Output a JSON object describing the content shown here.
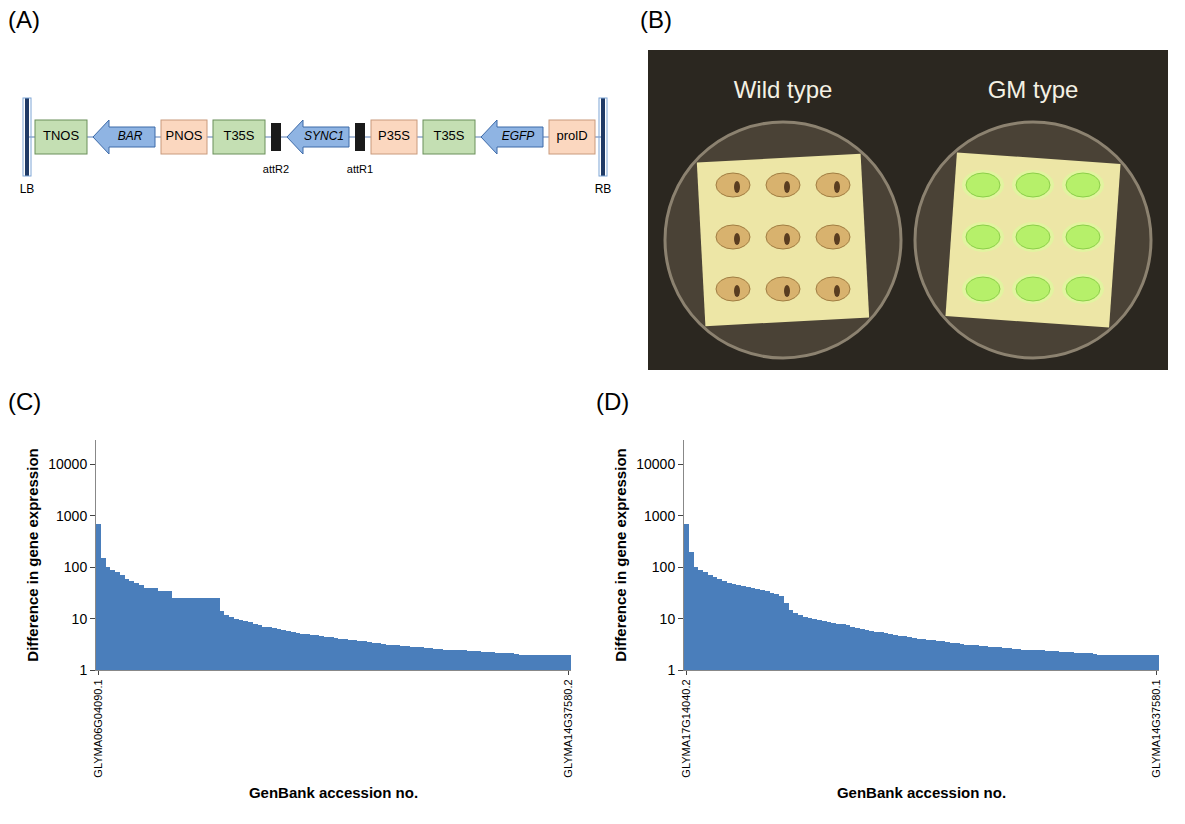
{
  "panels": {
    "A": {
      "letter": "(A)",
      "elements": [
        {
          "label": "LB",
          "kind": "border"
        },
        {
          "label": "TNOS",
          "kind": "terminator"
        },
        {
          "label": "BAR",
          "kind": "gene"
        },
        {
          "label": "PNOS",
          "kind": "promoter"
        },
        {
          "label": "T35S",
          "kind": "terminator"
        },
        {
          "label": "attR2",
          "kind": "site"
        },
        {
          "label": "SYNC1",
          "kind": "gene"
        },
        {
          "label": "attR1",
          "kind": "site"
        },
        {
          "label": "P35S",
          "kind": "promoter"
        },
        {
          "label": "T35S",
          "kind": "terminator"
        },
        {
          "label": "EGFP",
          "kind": "gene"
        },
        {
          "label": "prolD",
          "kind": "promoter"
        },
        {
          "label": "RB",
          "kind": "border"
        }
      ]
    },
    "B": {
      "letter": "(B)",
      "labels": [
        "Wild type",
        "GM type"
      ]
    },
    "C": {
      "letter": "(C)"
    },
    "D": {
      "letter": "(D)"
    }
  },
  "chart_data": [
    {
      "type": "bar",
      "x_label": "GenBank accession no.",
      "y_label": "Difference in gene expression",
      "log": "y",
      "grid": false,
      "color": "#4a7ebb",
      "ylim": [
        1,
        30000
      ],
      "yticks": [
        1,
        10,
        100,
        1000,
        10000
      ],
      "categories": [
        "GLYMA06G04090.1",
        null,
        null,
        null,
        null,
        null,
        null,
        null,
        null,
        null,
        null,
        null,
        null,
        null,
        null,
        null,
        null,
        null,
        null,
        null,
        null,
        null,
        null,
        null,
        null,
        null,
        null,
        null,
        null,
        null,
        null,
        null,
        null,
        null,
        null,
        null,
        null,
        null,
        null,
        null,
        null,
        null,
        null,
        null,
        null,
        null,
        null,
        null,
        null,
        null,
        null,
        null,
        null,
        null,
        null,
        null,
        null,
        null,
        null,
        null,
        null,
        null,
        null,
        null,
        null,
        null,
        null,
        null,
        null,
        null,
        null,
        null,
        null,
        null,
        null,
        null,
        null,
        null,
        null,
        null,
        null,
        null,
        null,
        null,
        null,
        null,
        null,
        null,
        null,
        null,
        null,
        null,
        null,
        null,
        null,
        null,
        null,
        null,
        null,
        "GLYMA14G37580.2"
      ],
      "values": [
        700,
        150,
        100,
        90,
        80,
        70,
        60,
        55,
        50,
        45,
        40,
        40,
        40,
        35,
        35,
        35,
        25,
        25,
        25,
        25,
        25,
        25,
        25,
        25,
        25,
        25,
        14,
        12,
        11,
        10,
        9.5,
        9,
        8.5,
        8,
        7.5,
        7,
        6.8,
        6.5,
        6.2,
        6,
        5.7,
        5.5,
        5.3,
        5.1,
        5,
        4.8,
        4.7,
        4.5,
        4.4,
        4.3,
        4.2,
        4.1,
        4,
        3.9,
        3.8,
        3.7,
        3.6,
        3.5,
        3.4,
        3.3,
        3.2,
        3.1,
        3.05,
        3,
        2.95,
        2.9,
        2.85,
        2.8,
        2.75,
        2.7,
        2.65,
        2.6,
        2.55,
        2.5,
        2.5,
        2.45,
        2.4,
        2.4,
        2.35,
        2.3,
        2.3,
        2.25,
        2.2,
        2.2,
        2.15,
        2.1,
        2.1,
        2.1,
        2.05,
        2,
        2,
        2,
        2,
        2,
        2,
        2,
        2,
        2,
        2,
        2
      ]
    },
    {
      "type": "bar",
      "x_label": "GenBank accession no.",
      "y_label": "Difference in gene expression",
      "log": "y",
      "grid": false,
      "color": "#4a7ebb",
      "ylim": [
        1,
        30000
      ],
      "yticks": [
        1,
        10,
        100,
        1000,
        10000
      ],
      "categories": [
        "GLYMA17G14040.2",
        null,
        null,
        null,
        null,
        null,
        null,
        null,
        null,
        null,
        null,
        null,
        null,
        null,
        null,
        null,
        null,
        null,
        null,
        null,
        null,
        null,
        null,
        null,
        null,
        null,
        null,
        null,
        null,
        null,
        null,
        null,
        null,
        null,
        null,
        null,
        null,
        null,
        null,
        null,
        null,
        null,
        null,
        null,
        null,
        null,
        null,
        null,
        null,
        null,
        null,
        null,
        null,
        null,
        null,
        null,
        null,
        null,
        null,
        null,
        null,
        null,
        null,
        null,
        null,
        null,
        null,
        null,
        null,
        null,
        null,
        null,
        null,
        null,
        null,
        null,
        null,
        null,
        null,
        null,
        null,
        null,
        null,
        null,
        null,
        null,
        null,
        null,
        null,
        null,
        null,
        null,
        null,
        null,
        null,
        null,
        null,
        null,
        null,
        "GLYMA14G37580.1"
      ],
      "values": [
        700,
        200,
        100,
        90,
        80,
        70,
        65,
        60,
        55,
        50,
        48,
        45,
        43,
        41,
        40,
        38,
        36,
        34,
        32,
        30,
        28,
        20,
        15,
        13,
        12,
        11,
        10.5,
        10,
        9.5,
        9,
        8.7,
        8.4,
        8,
        7.7,
        7.4,
        7,
        6.7,
        6.4,
        6.1,
        5.8,
        5.6,
        5.4,
        5.2,
        5,
        4.8,
        4.6,
        4.5,
        4.3,
        4.2,
        4.1,
        4,
        3.9,
        3.8,
        3.7,
        3.6,
        3.5,
        3.4,
        3.3,
        3.2,
        3.1,
        3.05,
        3,
        2.95,
        2.9,
        2.85,
        2.8,
        2.75,
        2.7,
        2.65,
        2.6,
        2.55,
        2.5,
        2.5,
        2.45,
        2.4,
        2.4,
        2.35,
        2.3,
        2.3,
        2.25,
        2.2,
        2.2,
        2.15,
        2.1,
        2.1,
        2.1,
        2.05,
        2,
        2,
        2,
        2,
        2,
        2,
        2,
        2,
        2,
        2,
        2,
        2,
        2
      ]
    }
  ]
}
